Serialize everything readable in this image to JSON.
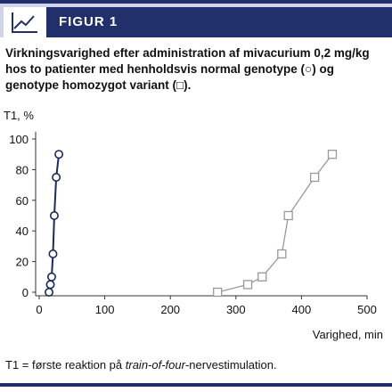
{
  "header": {
    "figure_label": "FIGUR 1",
    "icon": "line-chart-icon"
  },
  "caption": "Virkningsvarighed efter administration af mivacurium 0,2 mg/kg hos to patienter med henholdsvis normal genotype (○) og genotype homozygot variant (□).",
  "footnote": {
    "prefix": "T1 = første reaktion på ",
    "italic": "train-of-four",
    "suffix": "-nervestimulation."
  },
  "colors": {
    "brand_dark": "#21306a",
    "brand_light": "#cfd5e8",
    "normal_series": "#1b2a5e",
    "variant_series": "#999999"
  },
  "chart_data": {
    "type": "line",
    "xlabel": "Varighed, min",
    "ylabel": "T1, %",
    "xlim": [
      0,
      500
    ],
    "ylim": [
      0,
      100
    ],
    "xticks": [
      0,
      100,
      200,
      300,
      400,
      500
    ],
    "yticks": [
      0,
      20,
      40,
      60,
      80,
      100
    ],
    "grid": false,
    "series": [
      {
        "marker": "circle",
        "color": "#1b2a5e",
        "x": [
          15,
          17,
          19,
          21,
          23,
          26,
          30
        ],
        "y": [
          0,
          5,
          10,
          25,
          50,
          75,
          90
        ]
      },
      {
        "marker": "square",
        "color": "#999999",
        "x": [
          272,
          318,
          340,
          370,
          380,
          420,
          447
        ],
        "y": [
          0,
          5,
          10,
          25,
          50,
          75,
          90
        ]
      }
    ]
  }
}
